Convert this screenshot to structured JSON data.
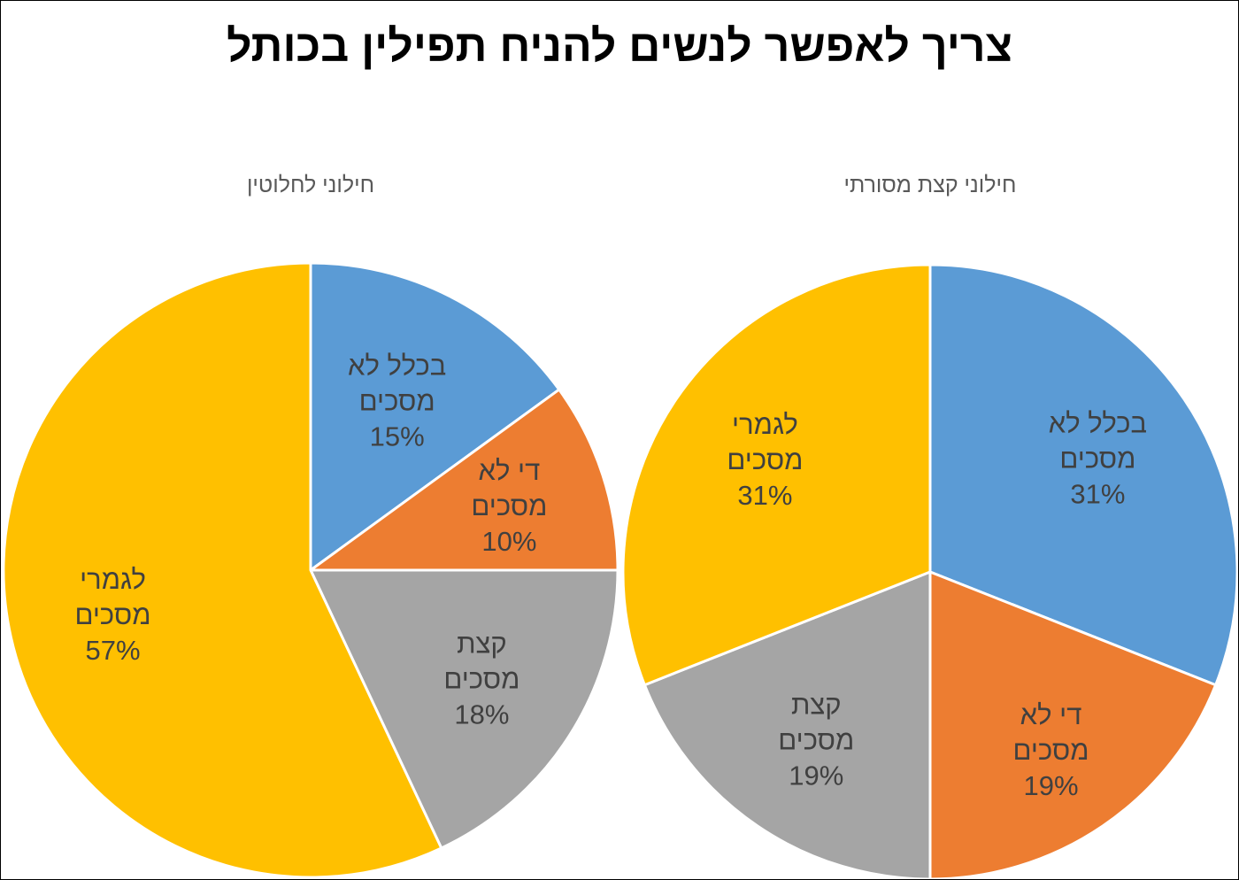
{
  "chart_title": "צריך לאפשר לנשים להניח תפילין בכותל",
  "chart_data": [
    {
      "type": "pie",
      "title": "חילוני לחלוטין",
      "slices": [
        {
          "label": [
            "בכלל לא",
            "מסכים",
            "15%"
          ],
          "value": 15,
          "color": "#5B9BD5"
        },
        {
          "label": [
            "די לא",
            "מסכים",
            "10%"
          ],
          "value": 10,
          "color": "#ED7D31"
        },
        {
          "label": [
            "קצת",
            "מסכים",
            "18%"
          ],
          "value": 18,
          "color": "#A5A5A5"
        },
        {
          "label": [
            "לגמרי",
            "מסכים",
            "57%"
          ],
          "value": 57,
          "color": "#FFC000"
        }
      ]
    },
    {
      "type": "pie",
      "title": "חילוני קצת מסורתי",
      "slices": [
        {
          "label": [
            "בכלל לא",
            "מסכים",
            "31%"
          ],
          "value": 31,
          "color": "#5B9BD5"
        },
        {
          "label": [
            "די לא",
            "מסכים",
            "19%"
          ],
          "value": 19,
          "color": "#ED7D31"
        },
        {
          "label": [
            "קצת",
            "מסכים",
            "19%"
          ],
          "value": 19,
          "color": "#A5A5A5"
        },
        {
          "label": [
            "לגמרי",
            "מסכים",
            "31%"
          ],
          "value": 31,
          "color": "#FFC000"
        }
      ]
    }
  ]
}
